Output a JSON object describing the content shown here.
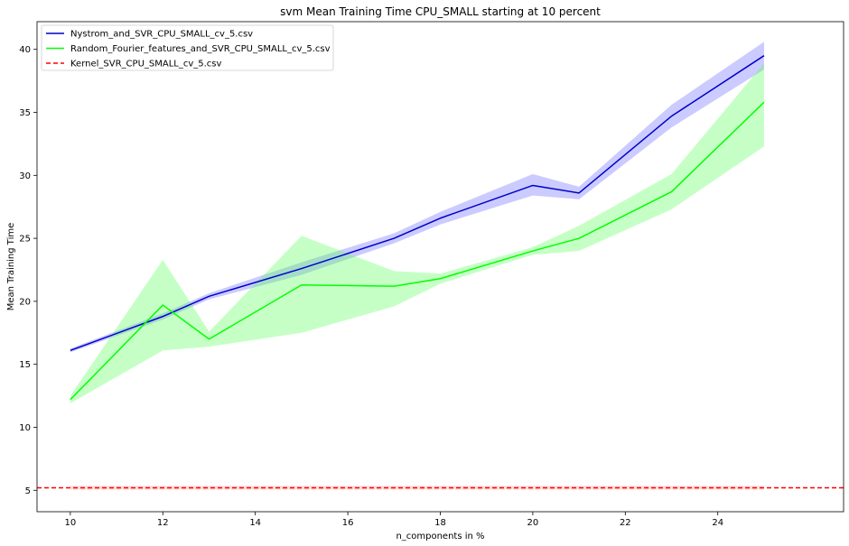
{
  "chart_data": {
    "type": "line",
    "title": "svm Mean Training Time CPU_SMALL starting at 10 percent",
    "xlabel": "n_components in %",
    "ylabel": "Mean Training Time",
    "xlim": [
      9.28,
      26.72
    ],
    "ylim": [
      3.3,
      42.2
    ],
    "xticks": [
      10,
      12,
      14,
      16,
      18,
      20,
      22,
      24
    ],
    "yticks": [
      5,
      10,
      15,
      20,
      25,
      30,
      35,
      40
    ],
    "grid": false,
    "legend_position": "top-left",
    "series": [
      {
        "name": "Nystrom_and_SVR_CPU_SMALL_cv_5.csv",
        "color": "#0000cc",
        "band_color": "#6b6bff",
        "style": "solid",
        "x": [
          10,
          12,
          13,
          15,
          17,
          18,
          20,
          21,
          23,
          25
        ],
        "y": [
          16.1,
          18.8,
          20.4,
          22.6,
          25.0,
          26.6,
          29.2,
          28.6,
          34.7,
          39.5
        ],
        "lower": [
          15.95,
          18.55,
          20.15,
          22.1,
          24.6,
          26.1,
          28.4,
          28.1,
          33.8,
          38.4
        ],
        "upper": [
          16.25,
          19.05,
          20.65,
          23.1,
          25.4,
          27.1,
          30.1,
          29.1,
          35.6,
          40.6
        ]
      },
      {
        "name": "Random_Fourier_features_and_SVR_CPU_SMALL_cv_5.csv",
        "color": "#00ff00",
        "band_color": "#5cff5c",
        "style": "solid",
        "x": [
          10,
          12,
          13,
          15,
          17,
          18,
          20,
          21,
          23,
          25
        ],
        "y": [
          12.2,
          19.7,
          17.0,
          21.3,
          21.2,
          21.8,
          24.0,
          25.0,
          28.7,
          35.8
        ],
        "lower": [
          11.9,
          16.1,
          16.4,
          17.5,
          19.6,
          21.4,
          23.7,
          24.0,
          27.3,
          32.3
        ],
        "upper": [
          12.5,
          23.3,
          17.6,
          25.2,
          22.4,
          22.2,
          24.3,
          26.0,
          30.1,
          38.9
        ]
      },
      {
        "name": "Kernel_SVR_CPU_SMALL_cv_5.csv",
        "color": "#ff0000",
        "band_color": "#ff9999",
        "style": "dashed",
        "y_constant": 5.2,
        "lower": 5.05,
        "upper": 5.35,
        "band_x": [
          10,
          25
        ]
      }
    ]
  }
}
